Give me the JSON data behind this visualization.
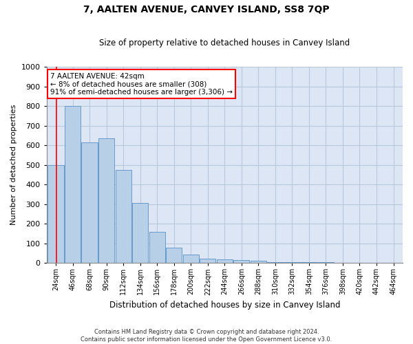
{
  "title": "7, AALTEN AVENUE, CANVEY ISLAND, SS8 7QP",
  "subtitle": "Size of property relative to detached houses in Canvey Island",
  "xlabel": "Distribution of detached houses by size in Canvey Island",
  "ylabel": "Number of detached properties",
  "footer_line1": "Contains HM Land Registry data © Crown copyright and database right 2024.",
  "footer_line2": "Contains public sector information licensed under the Open Government Licence v3.0.",
  "annotation_title": "7 AALTEN AVENUE: 42sqm",
  "annotation_line2": "← 8% of detached houses are smaller (308)",
  "annotation_line3": "91% of semi-detached houses are larger (3,306) →",
  "categories": [
    "24sqm",
    "46sqm",
    "68sqm",
    "90sqm",
    "112sqm",
    "134sqm",
    "156sqm",
    "178sqm",
    "200sqm",
    "222sqm",
    "244sqm",
    "266sqm",
    "288sqm",
    "310sqm",
    "332sqm",
    "354sqm",
    "376sqm",
    "398sqm",
    "420sqm",
    "442sqm",
    "464sqm"
  ],
  "values": [
    500,
    800,
    615,
    635,
    475,
    305,
    158,
    78,
    42,
    22,
    20,
    15,
    10,
    6,
    5,
    4,
    3,
    2,
    2,
    1,
    1
  ],
  "bar_color": "#b8cfe8",
  "bar_edge_color": "#6699cc",
  "redline_x": 0.05,
  "annotation_box_facecolor": "white",
  "annotation_box_edgecolor": "red",
  "background_color": "#ffffff",
  "axes_facecolor": "#dce6f5",
  "grid_color": "#b8c8dc",
  "ylim": [
    0,
    1000
  ],
  "yticks": [
    0,
    100,
    200,
    300,
    400,
    500,
    600,
    700,
    800,
    900,
    1000
  ]
}
